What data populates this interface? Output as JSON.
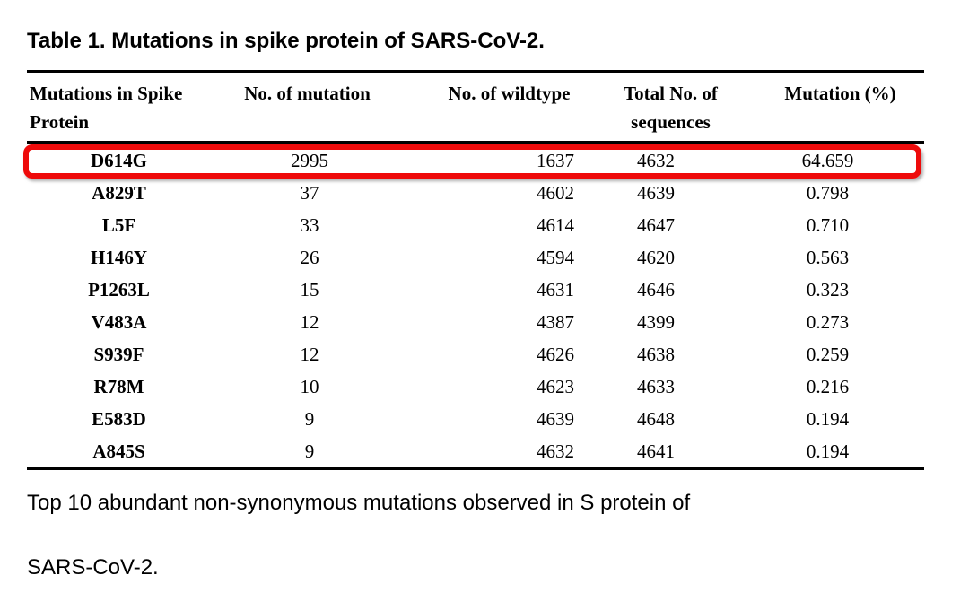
{
  "title": "Table 1. Mutations in spike protein of SARS-CoV-2.",
  "highlight": {
    "color": "#ee0b0b",
    "highlighted_row": "D614G"
  },
  "table": {
    "columns": [
      {
        "line1": "Mutations in Spike",
        "line2": "Protein"
      },
      {
        "line1": "No. of mutation",
        "line2": ""
      },
      {
        "line1": "No. of wildtype",
        "line2": ""
      },
      {
        "line1": "Total No. of",
        "line2": "sequences"
      },
      {
        "line1": "Mutation (%)",
        "line2": ""
      }
    ],
    "rows": [
      {
        "mutation": "D614G",
        "no_mutation": "2995",
        "no_wildtype": "1637",
        "total_sequences": "4632",
        "mutation_pct": "64.659"
      },
      {
        "mutation": "A829T",
        "no_mutation": "37",
        "no_wildtype": "4602",
        "total_sequences": "4639",
        "mutation_pct": "0.798"
      },
      {
        "mutation": "L5F",
        "no_mutation": "33",
        "no_wildtype": "4614",
        "total_sequences": "4647",
        "mutation_pct": "0.710"
      },
      {
        "mutation": "H146Y",
        "no_mutation": "26",
        "no_wildtype": "4594",
        "total_sequences": "4620",
        "mutation_pct": "0.563"
      },
      {
        "mutation": "P1263L",
        "no_mutation": "15",
        "no_wildtype": "4631",
        "total_sequences": "4646",
        "mutation_pct": "0.323"
      },
      {
        "mutation": "V483A",
        "no_mutation": "12",
        "no_wildtype": "4387",
        "total_sequences": "4399",
        "mutation_pct": "0.273"
      },
      {
        "mutation": "S939F",
        "no_mutation": "12",
        "no_wildtype": "4626",
        "total_sequences": "4638",
        "mutation_pct": "0.259"
      },
      {
        "mutation": "R78M",
        "no_mutation": "10",
        "no_wildtype": "4623",
        "total_sequences": "4633",
        "mutation_pct": "0.216"
      },
      {
        "mutation": "E583D",
        "no_mutation": "9",
        "no_wildtype": "4639",
        "total_sequences": "4648",
        "mutation_pct": "0.194"
      },
      {
        "mutation": "A845S",
        "no_mutation": "9",
        "no_wildtype": "4632",
        "total_sequences": "4641",
        "mutation_pct": "0.194"
      }
    ]
  },
  "caption": {
    "line1": "Top 10 abundant non-synonymous mutations observed in S protein of",
    "line2": "SARS-CoV-2."
  },
  "chart_data": {
    "type": "table",
    "title": "Table 1. Mutations in spike protein of SARS-CoV-2.",
    "columns": [
      "Mutations in Spike Protein",
      "No. of mutation",
      "No. of wildtype",
      "Total No. of sequences",
      "Mutation (%)"
    ],
    "rows": [
      [
        "D614G",
        2995,
        1637,
        4632,
        64.659
      ],
      [
        "A829T",
        37,
        4602,
        4639,
        0.798
      ],
      [
        "L5F",
        33,
        4614,
        4647,
        0.71
      ],
      [
        "H146Y",
        26,
        4594,
        4620,
        0.563
      ],
      [
        "P1263L",
        15,
        4631,
        4646,
        0.323
      ],
      [
        "V483A",
        12,
        4387,
        4399,
        0.273
      ],
      [
        "S939F",
        12,
        4626,
        4638,
        0.259
      ],
      [
        "R78M",
        10,
        4623,
        4633,
        0.216
      ],
      [
        "E583D",
        9,
        4639,
        4648,
        0.194
      ],
      [
        "A845S",
        9,
        4632,
        4641,
        0.194
      ]
    ],
    "annotations": [
      "red rounded rectangle highlighting the D614G row"
    ]
  }
}
